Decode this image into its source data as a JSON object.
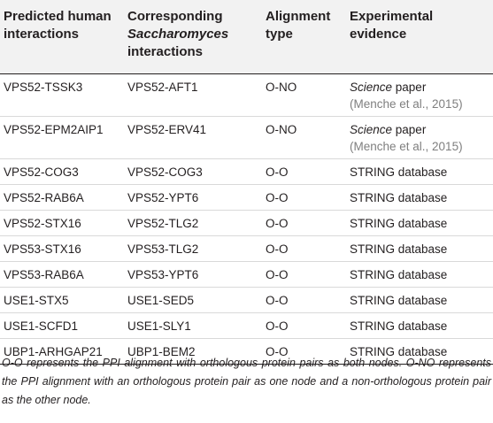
{
  "headers": {
    "col1": [
      "Predicted human",
      "interactions"
    ],
    "col2": [
      "Corresponding",
      "Saccharomyces",
      "interactions"
    ],
    "col3": [
      "Alignment",
      "type"
    ],
    "col4": [
      "Experimental",
      "evidence"
    ]
  },
  "rows": [
    {
      "human": "VPS52-TSSK3",
      "yeast": "VPS52-AFT1",
      "type": "O-NO",
      "evidence_italic": "Science",
      "evidence": " paper",
      "citation": "(Menche et al., 2015)"
    },
    {
      "human": "VPS52-EPM2AIP1",
      "yeast": "VPS52-ERV41",
      "type": "O-NO",
      "evidence_italic": "Science",
      "evidence": " paper",
      "citation": "(Menche et al., 2015)"
    },
    {
      "human": "VPS52-COG3",
      "yeast": "VPS52-COG3",
      "type": "O-O",
      "evidence": "STRING database"
    },
    {
      "human": "VPS52-RAB6A",
      "yeast": "VPS52-YPT6",
      "type": "O-O",
      "evidence": "STRING database"
    },
    {
      "human": "VPS52-STX16",
      "yeast": "VPS52-TLG2",
      "type": "O-O",
      "evidence": "STRING database"
    },
    {
      "human": "VPS53-STX16",
      "yeast": "VPS53-TLG2",
      "type": "O-O",
      "evidence": "STRING database"
    },
    {
      "human": "VPS53-RAB6A",
      "yeast": "VPS53-YPT6",
      "type": "O-O",
      "evidence": "STRING database"
    },
    {
      "human": "USE1-STX5",
      "yeast": "USE1-SED5",
      "type": "O-O",
      "evidence": "STRING database"
    },
    {
      "human": "USE1-SCFD1",
      "yeast": "USE1-SLY1",
      "type": "O-O",
      "evidence": "STRING database"
    },
    {
      "human": "UBP1-ARHGAP21",
      "yeast": "UBP1-BEM2",
      "type": "O-O",
      "evidence": "STRING database"
    }
  ],
  "footnote": "O-O represents the PPI alignment with orthologous protein pairs as both nodes. O-NO represents the PPI alignment with an orthologous protein pair as one node and a non-orthologous protein pair as the other node."
}
